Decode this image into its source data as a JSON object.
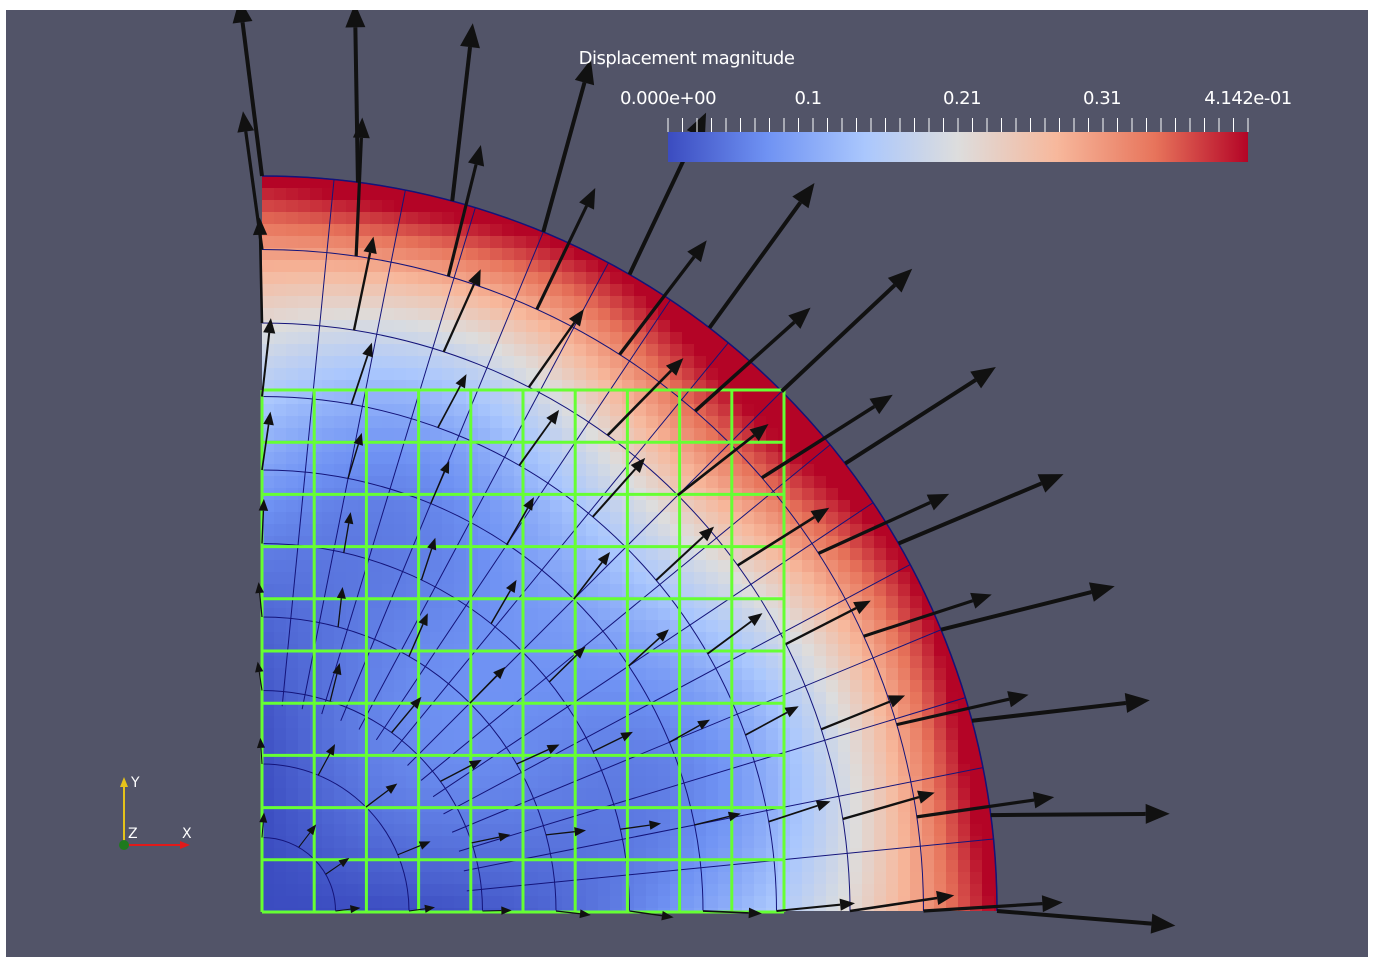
{
  "colorbar": {
    "title": "Displacement magnitude",
    "range": [
      0.0,
      0.4142
    ],
    "tick_labels": [
      {
        "value": 0.0,
        "label": "0.000e+00"
      },
      {
        "value": 0.1,
        "label": "0.1"
      },
      {
        "value": 0.21,
        "label": "0.21"
      },
      {
        "value": 0.31,
        "label": "0.31"
      },
      {
        "value": 0.4142,
        "label": "4.142e-01"
      }
    ],
    "colormap": [
      "#3b4cc0",
      "#6f92f3",
      "#aac7fd",
      "#dddddd",
      "#f7b89c",
      "#e7745b",
      "#b40426"
    ]
  },
  "axes_widget": {
    "y_label": "Y",
    "z_label": "Z",
    "x_label": "X"
  },
  "colors": {
    "background": "#525468",
    "overlay_grid": "#66ff33",
    "mesh_lines": "#14147a",
    "arrows": "#111111"
  }
}
